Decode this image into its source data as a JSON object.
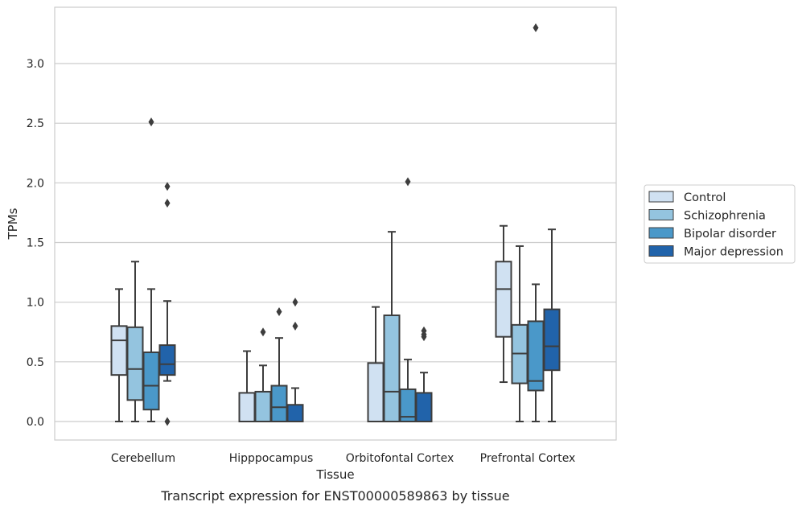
{
  "chart_data": {
    "type": "box",
    "title": "Transcript expression for ENST00000589863 by tissue",
    "xlabel": "Tissue",
    "ylabel": "TPMs",
    "ylim": [
      -0.16,
      3.48
    ],
    "yticks": [
      "0.0",
      "0.5",
      "1.0",
      "1.5",
      "2.0",
      "2.5",
      "3.0"
    ],
    "grid": true,
    "legend_position": "right",
    "categories": [
      "Cerebellum",
      "Hipppocampus",
      "Orbitofontal Cortex",
      "Prefrontal Cortex"
    ],
    "series": [
      {
        "name": "Control",
        "color": "#d0e1f2",
        "boxes": [
          {
            "whisker_low": 0.0,
            "q1": 0.39,
            "median": 0.68,
            "q3": 0.8,
            "whisker_high": 1.11,
            "outliers": []
          },
          {
            "whisker_low": 0.0,
            "q1": 0.0,
            "median": 0.0,
            "q3": 0.24,
            "whisker_high": 0.59,
            "outliers": []
          },
          {
            "whisker_low": 0.0,
            "q1": 0.0,
            "median": 0.0,
            "q3": 0.49,
            "whisker_high": 0.96,
            "outliers": []
          },
          {
            "whisker_low": 0.33,
            "q1": 0.71,
            "median": 1.11,
            "q3": 1.34,
            "whisker_high": 1.64,
            "outliers": []
          }
        ]
      },
      {
        "name": "Schizophrenia",
        "color": "#94c4df",
        "boxes": [
          {
            "whisker_low": 0.0,
            "q1": 0.18,
            "median": 0.44,
            "q3": 0.79,
            "whisker_high": 1.34,
            "outliers": []
          },
          {
            "whisker_low": 0.0,
            "q1": 0.0,
            "median": 0.0,
            "q3": 0.25,
            "whisker_high": 0.47,
            "outliers": [
              0.75
            ]
          },
          {
            "whisker_low": 0.0,
            "q1": 0.0,
            "median": 0.25,
            "q3": 0.89,
            "whisker_high": 1.59,
            "outliers": []
          },
          {
            "whisker_low": 0.0,
            "q1": 0.32,
            "median": 0.57,
            "q3": 0.81,
            "whisker_high": 1.47,
            "outliers": []
          }
        ]
      },
      {
        "name": "Bipolar disorder",
        "color": "#4a98c9",
        "boxes": [
          {
            "whisker_low": 0.0,
            "q1": 0.1,
            "median": 0.3,
            "q3": 0.58,
            "whisker_high": 1.11,
            "outliers": [
              2.51
            ]
          },
          {
            "whisker_low": 0.0,
            "q1": 0.0,
            "median": 0.12,
            "q3": 0.3,
            "whisker_high": 0.7,
            "outliers": [
              0.92
            ]
          },
          {
            "whisker_low": 0.0,
            "q1": 0.0,
            "median": 0.04,
            "q3": 0.27,
            "whisker_high": 0.52,
            "outliers": [
              2.01
            ]
          },
          {
            "whisker_low": 0.0,
            "q1": 0.26,
            "median": 0.34,
            "q3": 0.84,
            "whisker_high": 1.15,
            "outliers": [
              3.3
            ]
          }
        ]
      },
      {
        "name": "Major depression",
        "color": "#2163aa",
        "boxes": [
          {
            "whisker_low": 0.34,
            "q1": 0.39,
            "median": 0.48,
            "q3": 0.64,
            "whisker_high": 1.01,
            "outliers": [
              0.0,
              1.83,
              1.97
            ]
          },
          {
            "whisker_low": 0.0,
            "q1": 0.0,
            "median": 0.0,
            "q3": 0.14,
            "whisker_high": 0.28,
            "outliers": [
              0.8,
              1.0
            ]
          },
          {
            "whisker_low": 0.0,
            "q1": 0.0,
            "median": 0.0,
            "q3": 0.24,
            "whisker_high": 0.41,
            "outliers": [
              0.71,
              0.73,
              0.76
            ]
          },
          {
            "whisker_low": 0.0,
            "q1": 0.43,
            "median": 0.63,
            "q3": 0.94,
            "whisker_high": 1.61,
            "outliers": []
          }
        ]
      }
    ]
  }
}
